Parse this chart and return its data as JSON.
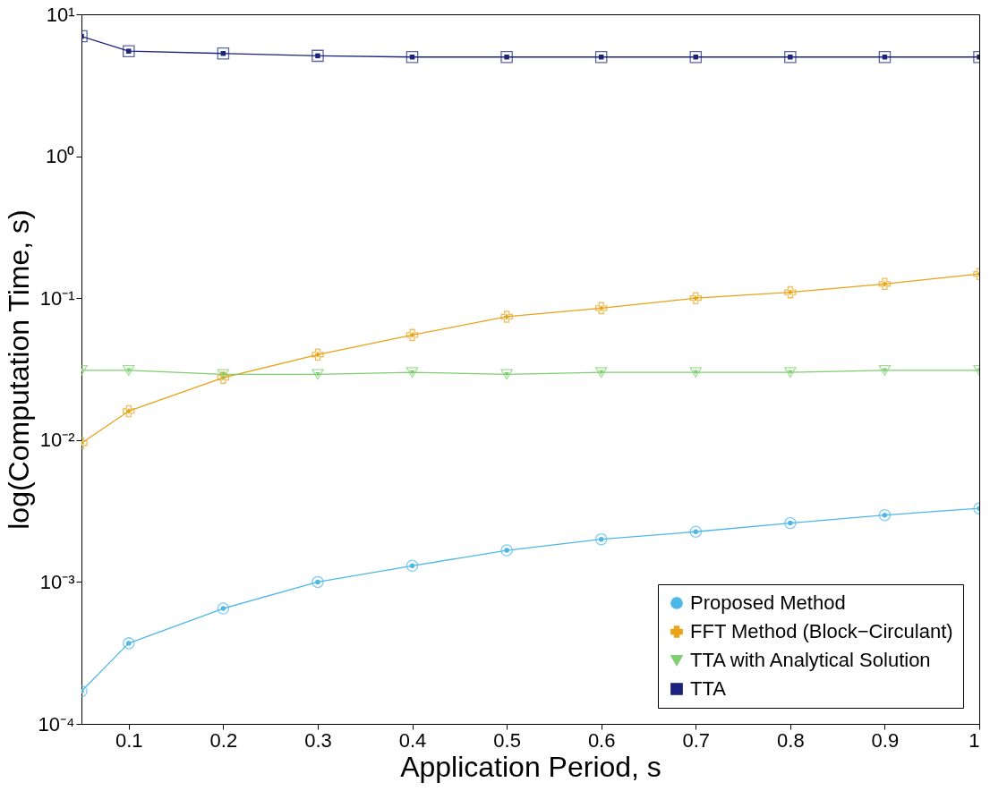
{
  "chart_data": {
    "type": "line",
    "xlabel": "Application Period, s",
    "ylabel": "log(Computation Time, s)",
    "x": [
      0.05,
      0.1,
      0.2,
      0.3,
      0.4,
      0.5,
      0.6,
      0.7,
      0.8,
      0.9,
      1
    ],
    "series": [
      {
        "name": "Proposed Method",
        "color": "#4db8e8",
        "marker": "circle",
        "values": [
          0.00017,
          0.00037,
          0.00065,
          0.001,
          0.0013,
          0.00167,
          0.002,
          0.00226,
          0.0026,
          0.00296,
          0.0033
        ]
      },
      {
        "name": "FFT Method (Block−Circulant)",
        "color": "#e8a317",
        "marker": "cross",
        "values": [
          0.0095,
          0.016,
          0.0275,
          0.04,
          0.055,
          0.074,
          0.085,
          0.1,
          0.11,
          0.126,
          0.148
        ]
      },
      {
        "name": "TTA with Analytical Solution",
        "color": "#7dcf6f",
        "marker": "triangle",
        "values": [
          0.031,
          0.031,
          0.029,
          0.029,
          0.03,
          0.029,
          0.03,
          0.03,
          0.03,
          0.031,
          0.031
        ]
      },
      {
        "name": "TTA",
        "color": "#1a237e",
        "marker": "square",
        "values": [
          7.0,
          5.5,
          5.3,
          5.1,
          5.0,
          5.0,
          5.0,
          5.0,
          5.0,
          5.0,
          5.0
        ]
      }
    ],
    "log": "y",
    "xlim": [
      0.05,
      1
    ],
    "ylim": [
      0.0001,
      10
    ],
    "xticks": [
      0.1,
      0.2,
      0.3,
      0.4,
      0.5,
      0.6,
      0.7,
      0.8,
      0.9,
      1
    ],
    "yticks": [
      {
        "value": 0.0001,
        "label": "10⁻⁴"
      },
      {
        "value": 0.001,
        "label": "10⁻³"
      },
      {
        "value": 0.01,
        "label": "10⁻²"
      },
      {
        "value": 0.1,
        "label": "10⁻¹"
      },
      {
        "value": 1,
        "label": "10⁰"
      },
      {
        "value": 10,
        "label": "10¹"
      }
    ],
    "grid": false,
    "legend": "bottom right",
    "line_style": "solid"
  }
}
